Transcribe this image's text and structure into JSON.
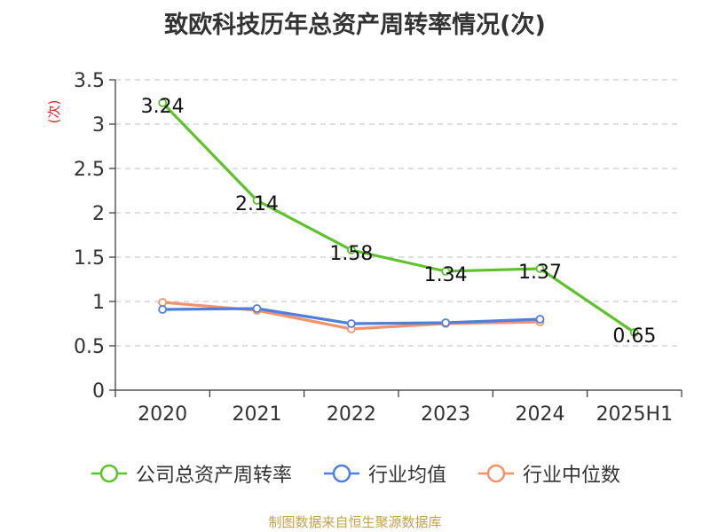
{
  "chart_data": {
    "type": "line",
    "title": "致欧科技历年总资产周转率情况(次)",
    "ylabel": "(次)",
    "xlabel": "",
    "categories": [
      "2020",
      "2021",
      "2022",
      "2023",
      "2024",
      "2025H1"
    ],
    "ylim": [
      0,
      3.5
    ],
    "yticks": [
      "0",
      "0.5",
      "1",
      "1.5",
      "2",
      "2.5",
      "3",
      "3.5"
    ],
    "grid": "horizontal dashed",
    "legend_position": "bottom",
    "series": [
      {
        "name": "公司总资产周转率",
        "color": "#5ec22a",
        "values": [
          3.24,
          2.14,
          1.58,
          1.34,
          1.37,
          0.65
        ],
        "labels": [
          "3.24",
          "2.14",
          "1.58",
          "1.34",
          "1.37",
          "0.65"
        ]
      },
      {
        "name": "行业均值",
        "color": "#4f7fdc",
        "values": [
          0.91,
          0.92,
          0.75,
          0.76,
          0.8,
          null
        ]
      },
      {
        "name": "行业中位数",
        "color": "#f5926b",
        "values": [
          0.99,
          0.9,
          0.69,
          0.75,
          0.77,
          null
        ]
      }
    ]
  },
  "source_text": "制图数据来自恒生聚源数据库",
  "colors": {
    "axis": "#333333",
    "grid": "#cccccc",
    "ylabel": "#e02020",
    "source": "#c8a04a"
  }
}
